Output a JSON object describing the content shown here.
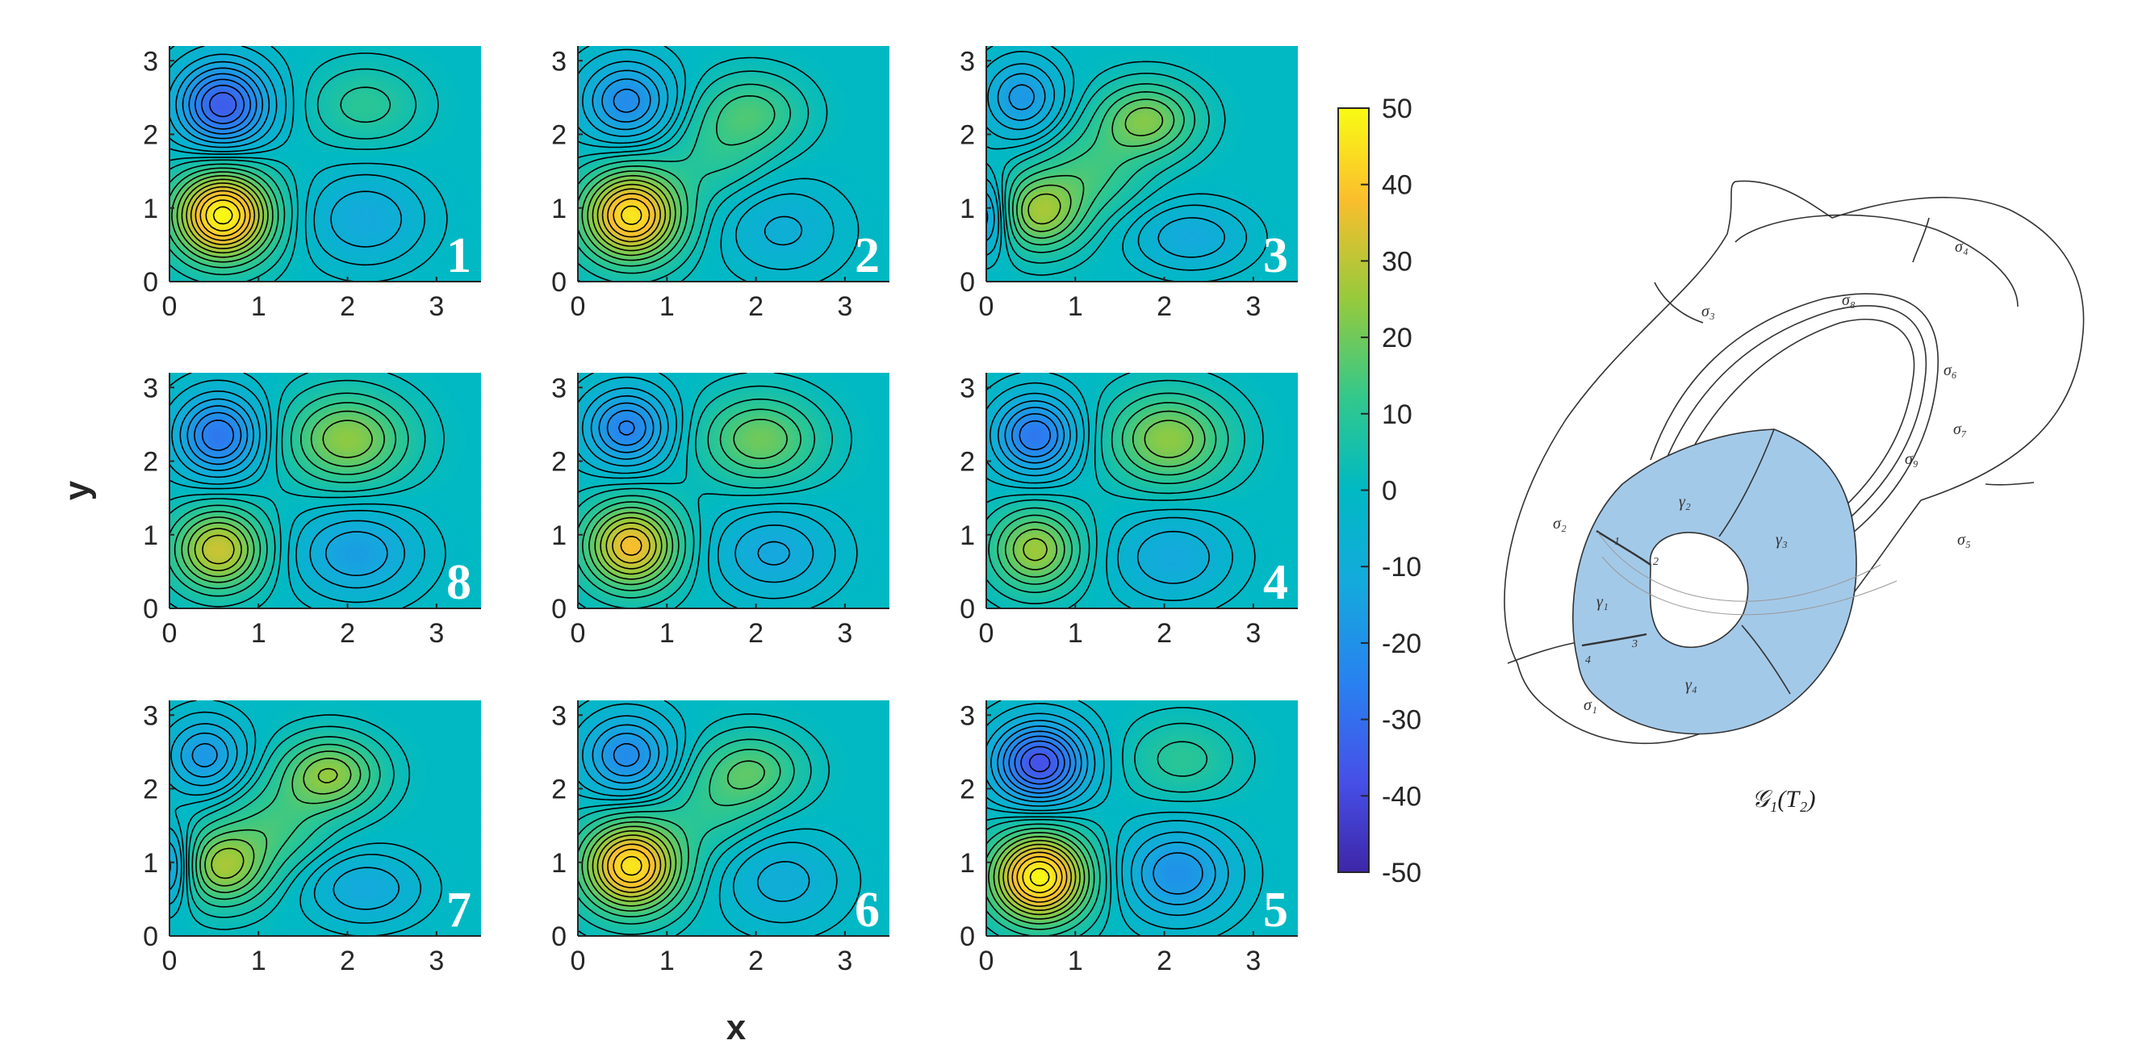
{
  "chart_data": {
    "type": "heatmap",
    "description_kind": "3x3 grid of filled contour plots with shared colorbar",
    "xlabel": "x",
    "ylabel": "y",
    "xlim": [
      0,
      3.5
    ],
    "ylim": [
      0,
      3.2
    ],
    "xticks": [
      "0",
      "1",
      "2",
      "3"
    ],
    "yticks": [
      "0",
      "1",
      "2",
      "3"
    ],
    "colorbar": {
      "colormap": "parula",
      "clim": [
        -50,
        50
      ],
      "ticks": [
        "50",
        "40",
        "30",
        "20",
        "10",
        "0",
        "-10",
        "-20",
        "-30",
        "-40",
        "-50"
      ]
    },
    "panels": [
      {
        "label": "1",
        "features": [
          {
            "x": 0.6,
            "y": 2.4,
            "value": -35,
            "sx": 0.36,
            "sy": 0.4
          },
          {
            "x": 0.6,
            "y": 0.9,
            "value": 50,
            "sx": 0.38,
            "sy": 0.42
          },
          {
            "x": 2.2,
            "y": 2.4,
            "value": 10,
            "sx": 0.42,
            "sy": 0.36
          },
          {
            "x": 2.2,
            "y": 0.85,
            "value": -12,
            "sx": 0.45,
            "sy": 0.42
          }
        ]
      },
      {
        "label": "2",
        "features": [
          {
            "x": 0.55,
            "y": 2.45,
            "value": -22,
            "sx": 0.35,
            "sy": 0.38
          },
          {
            "x": 0.6,
            "y": 0.9,
            "value": 46,
            "sx": 0.38,
            "sy": 0.42
          },
          {
            "x": 1.95,
            "y": 2.3,
            "value": 14,
            "sx": 0.4,
            "sy": 0.35
          },
          {
            "x": 1.55,
            "y": 1.7,
            "value": 8,
            "sx": 0.4,
            "sy": 0.4
          },
          {
            "x": 2.3,
            "y": 0.7,
            "value": -9,
            "sx": 0.45,
            "sy": 0.42
          }
        ]
      },
      {
        "label": "3",
        "features": [
          {
            "x": 0.4,
            "y": 2.5,
            "value": -18,
            "sx": 0.3,
            "sy": 0.36
          },
          {
            "x": 0.6,
            "y": 0.95,
            "value": 26,
            "sx": 0.34,
            "sy": 0.36
          },
          {
            "x": 0.0,
            "y": 0.9,
            "value": -18,
            "sx": 0.2,
            "sy": 0.35
          },
          {
            "x": 1.8,
            "y": 2.2,
            "value": 22,
            "sx": 0.38,
            "sy": 0.34
          },
          {
            "x": 1.2,
            "y": 1.5,
            "value": 12,
            "sx": 0.4,
            "sy": 0.4
          },
          {
            "x": 2.3,
            "y": 0.6,
            "value": -12,
            "sx": 0.42,
            "sy": 0.3
          }
        ]
      },
      {
        "label": "8",
        "features": [
          {
            "x": 0.55,
            "y": 2.35,
            "value": -28,
            "sx": 0.33,
            "sy": 0.38
          },
          {
            "x": 0.55,
            "y": 0.8,
            "value": 32,
            "sx": 0.35,
            "sy": 0.38
          },
          {
            "x": 2.0,
            "y": 2.3,
            "value": 24,
            "sx": 0.46,
            "sy": 0.42
          },
          {
            "x": 2.1,
            "y": 0.75,
            "value": -16,
            "sx": 0.46,
            "sy": 0.4
          }
        ]
      },
      {
        "label": "",
        "features": [
          {
            "x": 0.55,
            "y": 2.45,
            "value": -25,
            "sx": 0.33,
            "sy": 0.36
          },
          {
            "x": 0.6,
            "y": 0.85,
            "value": 38,
            "sx": 0.36,
            "sy": 0.4
          },
          {
            "x": 2.05,
            "y": 2.3,
            "value": 20,
            "sx": 0.45,
            "sy": 0.4
          },
          {
            "x": 2.2,
            "y": 0.75,
            "value": -13,
            "sx": 0.45,
            "sy": 0.4
          }
        ]
      },
      {
        "label": "4",
        "features": [
          {
            "x": 0.55,
            "y": 2.35,
            "value": -28,
            "sx": 0.32,
            "sy": 0.36
          },
          {
            "x": 0.55,
            "y": 0.8,
            "value": 26,
            "sx": 0.34,
            "sy": 0.38
          },
          {
            "x": 2.05,
            "y": 2.3,
            "value": 24,
            "sx": 0.45,
            "sy": 0.42
          },
          {
            "x": 2.1,
            "y": 0.7,
            "value": -12,
            "sx": 0.45,
            "sy": 0.4
          }
        ]
      },
      {
        "label": "7",
        "features": [
          {
            "x": 0.4,
            "y": 2.45,
            "value": -18,
            "sx": 0.3,
            "sy": 0.34
          },
          {
            "x": 0.6,
            "y": 0.95,
            "value": 26,
            "sx": 0.34,
            "sy": 0.36
          },
          {
            "x": 0.0,
            "y": 0.95,
            "value": -18,
            "sx": 0.2,
            "sy": 0.35
          },
          {
            "x": 1.8,
            "y": 2.2,
            "value": 24,
            "sx": 0.38,
            "sy": 0.34
          },
          {
            "x": 1.2,
            "y": 1.5,
            "value": 12,
            "sx": 0.4,
            "sy": 0.4
          },
          {
            "x": 2.2,
            "y": 0.65,
            "value": -12,
            "sx": 0.42,
            "sy": 0.32
          }
        ]
      },
      {
        "label": "6",
        "features": [
          {
            "x": 0.55,
            "y": 2.45,
            "value": -22,
            "sx": 0.35,
            "sy": 0.38
          },
          {
            "x": 0.6,
            "y": 0.95,
            "value": 46,
            "sx": 0.38,
            "sy": 0.42
          },
          {
            "x": 1.95,
            "y": 2.25,
            "value": 16,
            "sx": 0.4,
            "sy": 0.35
          },
          {
            "x": 1.5,
            "y": 1.7,
            "value": 8,
            "sx": 0.4,
            "sy": 0.4
          },
          {
            "x": 2.3,
            "y": 0.75,
            "value": -10,
            "sx": 0.45,
            "sy": 0.42
          }
        ]
      },
      {
        "label": "5",
        "features": [
          {
            "x": 0.6,
            "y": 2.35,
            "value": -38,
            "sx": 0.36,
            "sy": 0.38
          },
          {
            "x": 0.6,
            "y": 0.8,
            "value": 50,
            "sx": 0.38,
            "sy": 0.42
          },
          {
            "x": 2.2,
            "y": 2.4,
            "value": 10,
            "sx": 0.42,
            "sy": 0.36
          },
          {
            "x": 2.15,
            "y": 0.85,
            "value": -20,
            "sx": 0.42,
            "sy": 0.42
          }
        ]
      }
    ]
  },
  "diagram": {
    "caption": "𝒢₁(T₂)",
    "sigma_labels": [
      "σ₁",
      "σ₂",
      "σ₃",
      "σ₄",
      "σ₅",
      "σ₆",
      "σ₇",
      "σ₈",
      "σ₉"
    ],
    "gamma_labels": [
      "γ₁",
      "γ₂",
      "γ₃",
      "γ₄"
    ],
    "small_numbers": [
      "1",
      "2",
      "3",
      "4"
    ],
    "fill_color": "#a3c9e9"
  },
  "colors": {
    "panel_background": "#00b2c2",
    "contour_line": "#000000",
    "panel_number": "#ffffff"
  }
}
